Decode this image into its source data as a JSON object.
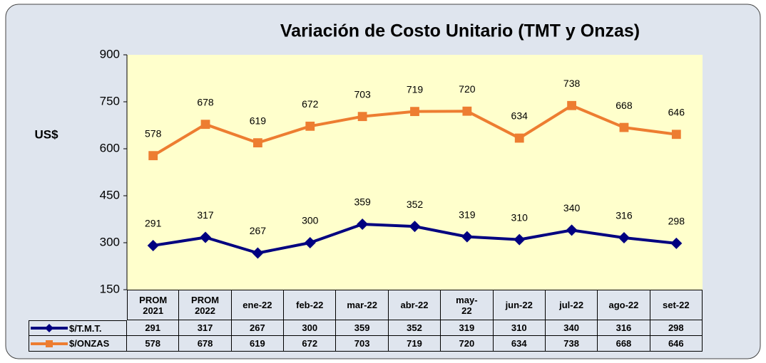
{
  "chart_data": {
    "type": "line",
    "title": "Variación de Costo Unitario (TMT y Onzas)",
    "y_label": "US$",
    "categories": [
      "PROM 2021",
      "PROM 2022",
      "ene-22",
      "feb-22",
      "mar-22",
      "abr-22",
      "may-22",
      "jun-22",
      "jul-22",
      "ago-22",
      "set-22"
    ],
    "series": [
      {
        "name": "$/T.M.T.",
        "color": "#000080",
        "marker": "diamond",
        "values": [
          291,
          317,
          267,
          300,
          359,
          352,
          319,
          310,
          340,
          316,
          298
        ]
      },
      {
        "name": "$/ONZAS",
        "color": "#ed7d31",
        "marker": "square",
        "values": [
          578,
          678,
          619,
          672,
          703,
          719,
          720,
          634,
          738,
          668,
          646
        ]
      }
    ],
    "ylim": [
      150,
      900
    ],
    "yticks": [
      150,
      300,
      450,
      600,
      750,
      900
    ],
    "grid": false
  }
}
